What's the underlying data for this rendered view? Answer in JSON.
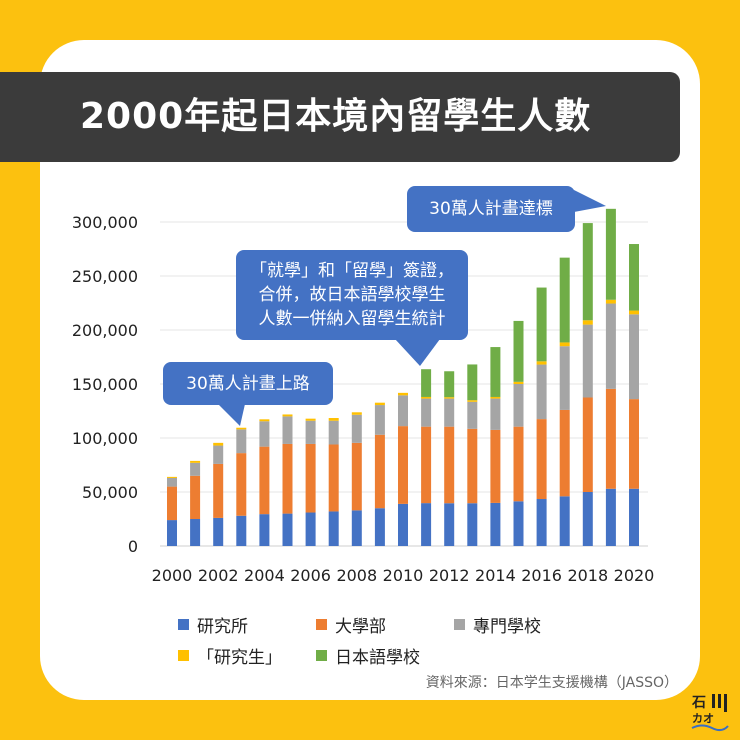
{
  "title": "2000年起日本境內留學生人數",
  "callouts": {
    "c1": "30萬人計畫上路",
    "c2_lines": [
      "「就學」和「留學」簽證，",
      "合併，故日本語學校學生",
      "人數一併納入留學生統計"
    ],
    "c3": "30萬人計畫達標"
  },
  "source": "資料來源：日本学生支援機構（JASSO）",
  "logo_text": "石川カオリ",
  "chart_data": {
    "type": "bar",
    "stacked": true,
    "title": "2000年起日本境內留學生人數",
    "xlabel": "",
    "ylabel": "",
    "ylim": [
      0,
      300000
    ],
    "yticks": [
      0,
      50000,
      100000,
      150000,
      200000,
      250000,
      300000
    ],
    "ytick_labels": [
      "0",
      "50,000",
      "100,000",
      "150,000",
      "200,000",
      "250,000",
      "300,000"
    ],
    "grid": true,
    "legend_position": "bottom",
    "categories": [
      "2000",
      "2001",
      "2002",
      "2003",
      "2004",
      "2005",
      "2006",
      "2007",
      "2008",
      "2009",
      "2010",
      "2011",
      "2012",
      "2013",
      "2014",
      "2015",
      "2016",
      "2017",
      "2018",
      "2019",
      "2020"
    ],
    "xtick_labels": [
      "2000",
      "2002",
      "2004",
      "2006",
      "2008",
      "2010",
      "2012",
      "2014",
      "2016",
      "2018",
      "2020"
    ],
    "series": [
      {
        "name": "研究所",
        "color": "#4472C4",
        "values": [
          24000,
          25000,
          26000,
          28000,
          29500,
          30000,
          31000,
          32000,
          33000,
          35000,
          39000,
          39700,
          39600,
          39600,
          39900,
          41400,
          43500,
          46000,
          50000,
          53000,
          53000
        ]
      },
      {
        "name": "大學部",
        "color": "#ED7D31",
        "values": [
          31000,
          40000,
          50000,
          58000,
          62500,
          64500,
          63500,
          62000,
          62500,
          68000,
          72000,
          70800,
          70900,
          68900,
          67600,
          69100,
          74000,
          80000,
          87500,
          92500,
          83000
        ]
      },
      {
        "name": "專門學校",
        "color": "#A5A5A5",
        "values": [
          8000,
          12000,
          17000,
          22000,
          23500,
          25500,
          21500,
          22000,
          26000,
          27500,
          28500,
          26000,
          26000,
          25000,
          29000,
          39500,
          50500,
          59000,
          67500,
          79000,
          78500
        ]
      },
      {
        "name": "「研究生」",
        "color": "#FFC000",
        "values": [
          1000,
          1800,
          2500,
          1500,
          1800,
          1800,
          1900,
          2500,
          2300,
          2200,
          2300,
          1500,
          1300,
          1500,
          1500,
          2000,
          3000,
          3500,
          4000,
          3500,
          3500
        ]
      },
      {
        "name": "日本語學校",
        "color": "#70AD47",
        "values": [
          0,
          0,
          0,
          0,
          0,
          0,
          0,
          0,
          0,
          0,
          0,
          25700,
          24000,
          33100,
          46200,
          56400,
          68300,
          78500,
          90000,
          84200,
          61600
        ]
      }
    ]
  }
}
